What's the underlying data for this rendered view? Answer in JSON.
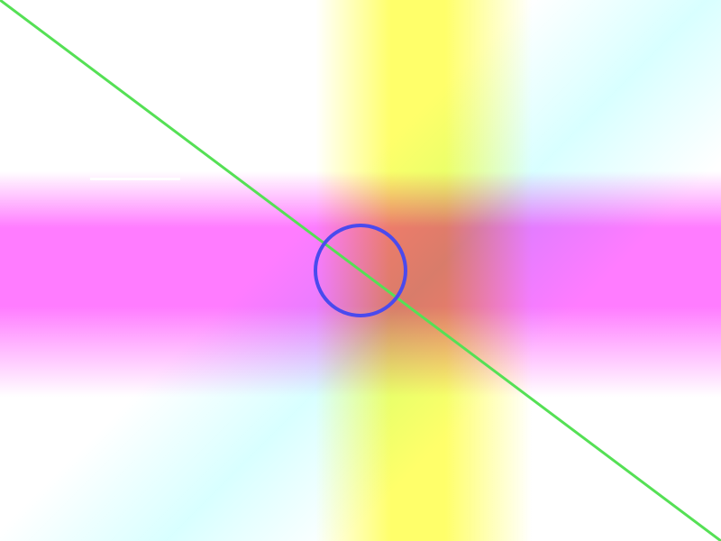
{
  "colors": {
    "background": "#ffffff",
    "diagonal_line": "#55e055",
    "circle_stroke": "#4a4aee",
    "yellow_band": "#ffff5a",
    "magenta_band": "#ff6eff",
    "cyan_diagonal": "#aaffff"
  }
}
